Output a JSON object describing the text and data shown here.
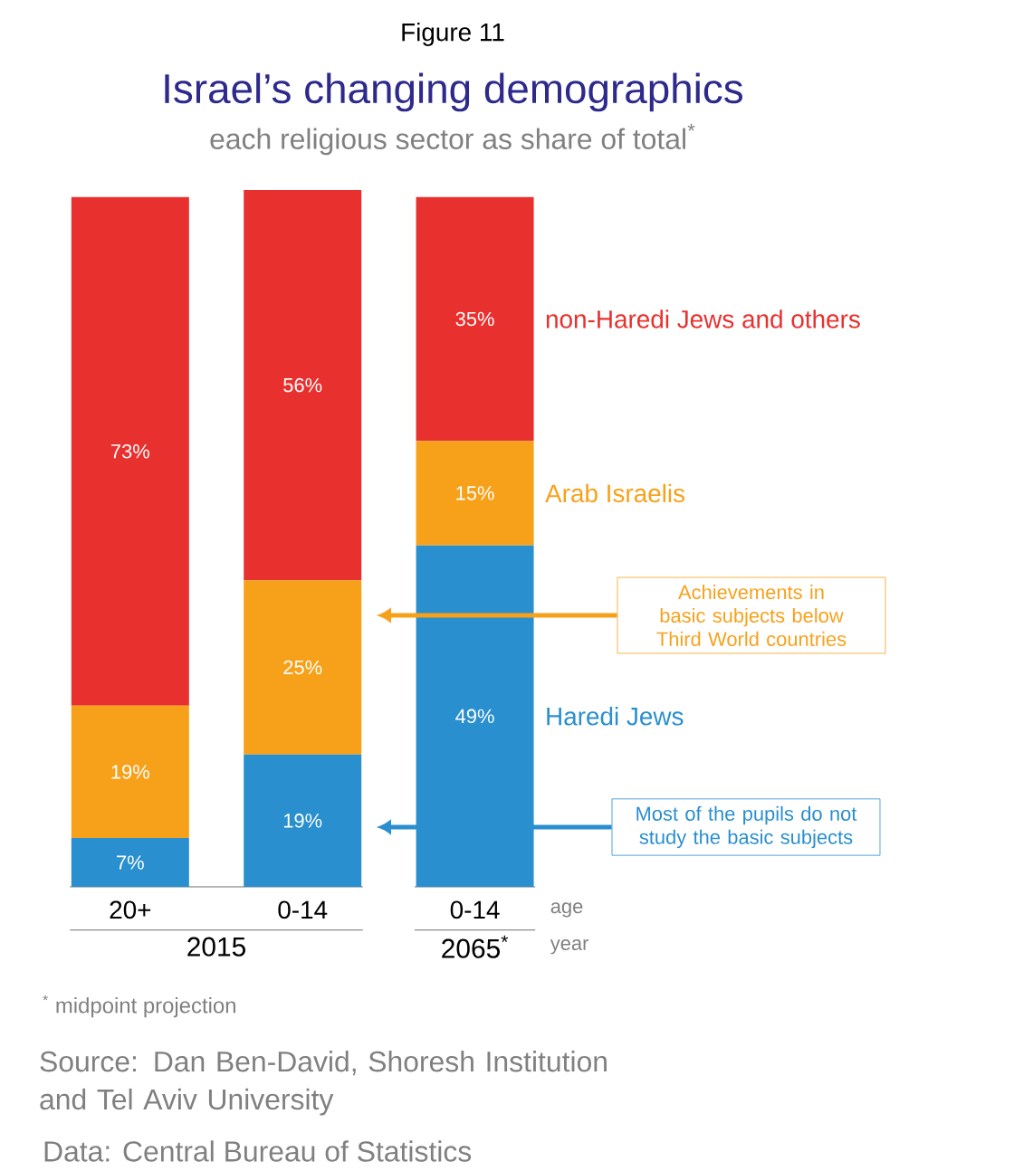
{
  "chart_data": {
    "type": "bar",
    "stacked": true,
    "title": "Israel’s changing demographics",
    "subtitle": "each religious sector as share of total$^{*}$",
    "categories": [
      "20+",
      "0-14",
      "0-14"
    ],
    "ylim": [
      0,
      100
    ],
    "tick_labels": "x",
    "series": [
      {
        "name": "Haredi Jews",
        "color": "#2a8fcf",
        "values": [
          7,
          19,
          49
        ],
        "value_labels": [
          "7%",
          "19%",
          "49%"
        ]
      },
      {
        "name": "Arab Israelis",
        "color": "#f7a11a",
        "values": [
          19,
          25,
          15
        ],
        "value_labels": [
          "19%",
          "25%",
          "15%"
        ]
      },
      {
        "name": "non-Haredi Jews and others",
        "color": "#e8312f",
        "values": [
          73,
          56,
          35
        ],
        "value_labels": [
          "73%",
          "56%",
          "35%"
        ]
      }
    ],
    "annotations": [
      "Figure 11",
      "age",
      "2015",
      "2065$^{*}$",
      "year",
      "Achievements in basic subjects below Third World countries",
      "Most of the pupils do not study the basic subjects",
      "$^{*}$ midpoint projection",
      "Source: Dan Ben-David, Shoresh Institution and Tel Aviv University",
      "Data: Central Bureau of Statistics"
    ]
  }
}
